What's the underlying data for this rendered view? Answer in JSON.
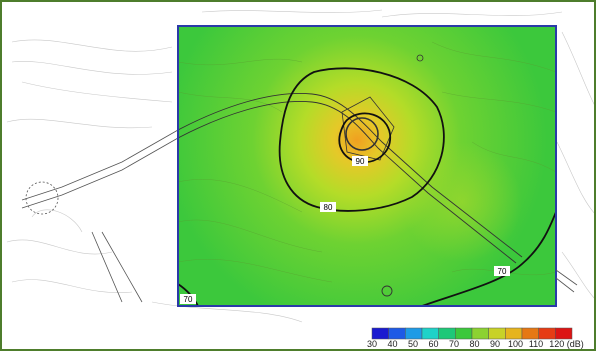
{
  "map": {
    "contour_labels": [
      "90",
      "80",
      "70",
      "70"
    ]
  },
  "legend": {
    "colors": [
      "#1a1ad0",
      "#1e5ae6",
      "#1e9be6",
      "#1ed2c8",
      "#1ec878",
      "#3cc83c",
      "#8cd232",
      "#c8d228",
      "#e6b41e",
      "#e67814",
      "#e63c14",
      "#dc1414"
    ],
    "tick_labels": [
      "30",
      "40",
      "50",
      "60",
      "70",
      "80",
      "90",
      "100",
      "110",
      "120 (dB)"
    ],
    "range": [
      30,
      120
    ],
    "unit": "dB"
  },
  "colors": {
    "frame_border": "#4e7d2c",
    "heatmap_border": "#2a3aa8"
  }
}
